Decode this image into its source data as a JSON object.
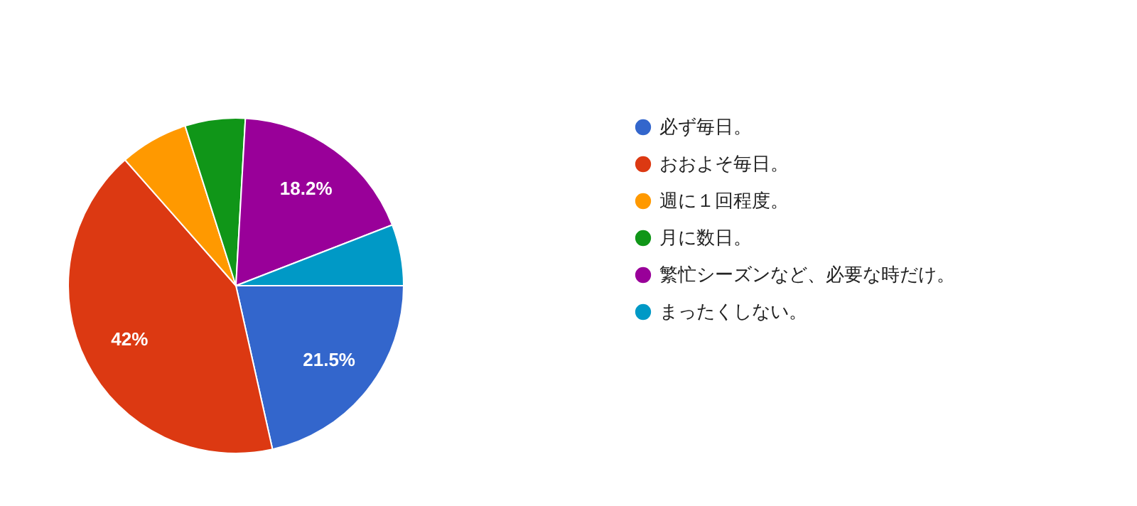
{
  "chart_data": {
    "type": "pie",
    "categories": [
      "必ず毎日。",
      "おおよそ毎日。",
      "週に１回程度。",
      "月に数日。",
      "繁忙シーズンなど、必要な時だけ。",
      "まったくしない。"
    ],
    "values": [
      21.5,
      42,
      6.6,
      5.8,
      18.2,
      5.9
    ],
    "colors": [
      "#3366cc",
      "#dc3912",
      "#ff9900",
      "#109618",
      "#990099",
      "#0099c6"
    ],
    "value_labels": [
      "21.5%",
      "42%",
      null,
      null,
      "18.2%",
      null
    ],
    "legend": "right"
  }
}
